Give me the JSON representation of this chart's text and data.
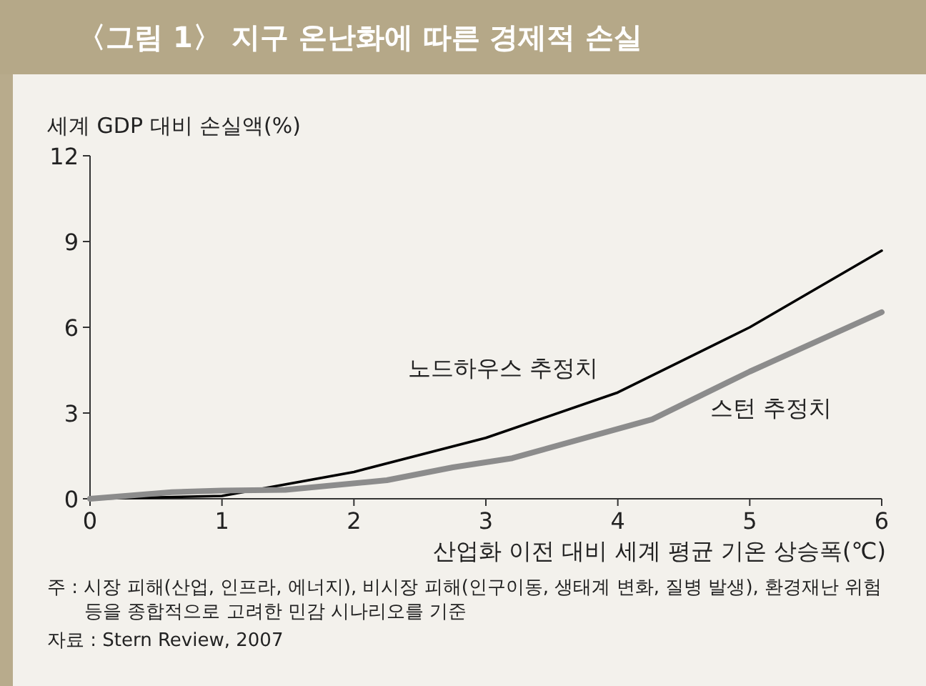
{
  "chart_data": {
    "type": "line",
    "title": "〈그림 1〉 지구 온난화에 따른 경제적 손실",
    "ylabel": "세계 GDP 대비 손실액(%)",
    "xlabel": "산업화 이전 대비 세계 평균 기온 상승폭(℃)",
    "series": [
      {
        "name": "노드하우스 추정치",
        "color": "#000000",
        "x": [
          0,
          1,
          2,
          3,
          4,
          5,
          6
        ],
        "values": [
          0,
          0.1,
          0.94,
          2.13,
          3.72,
          6.0,
          8.68
        ]
      },
      {
        "name": "스턴 추정치",
        "color": "#8c8c8c",
        "x": [
          0,
          0.62,
          1,
          1.48,
          2.25,
          2.75,
          3.2,
          4.26,
          5,
          6
        ],
        "values": [
          0,
          0.23,
          0.29,
          0.31,
          0.65,
          1.1,
          1.42,
          2.78,
          4.45,
          6.53
        ]
      }
    ],
    "xlim": [
      0,
      6
    ],
    "xticks": [
      0,
      1,
      2,
      3,
      4,
      5,
      6
    ],
    "ylim": [
      0,
      12
    ],
    "yticks": [
      0,
      3,
      6,
      9,
      12
    ],
    "grid": false,
    "annotations": [
      "주 : 시장 피해(산업, 인프라, 에너지), 비시장 피해(인구이동, 생태계 변화, 질병 발생), 환경재난 위험 등을 종합적으로 고려한 민감 시나리오를 기준",
      "자료 : Stern Review, 2007"
    ]
  }
}
